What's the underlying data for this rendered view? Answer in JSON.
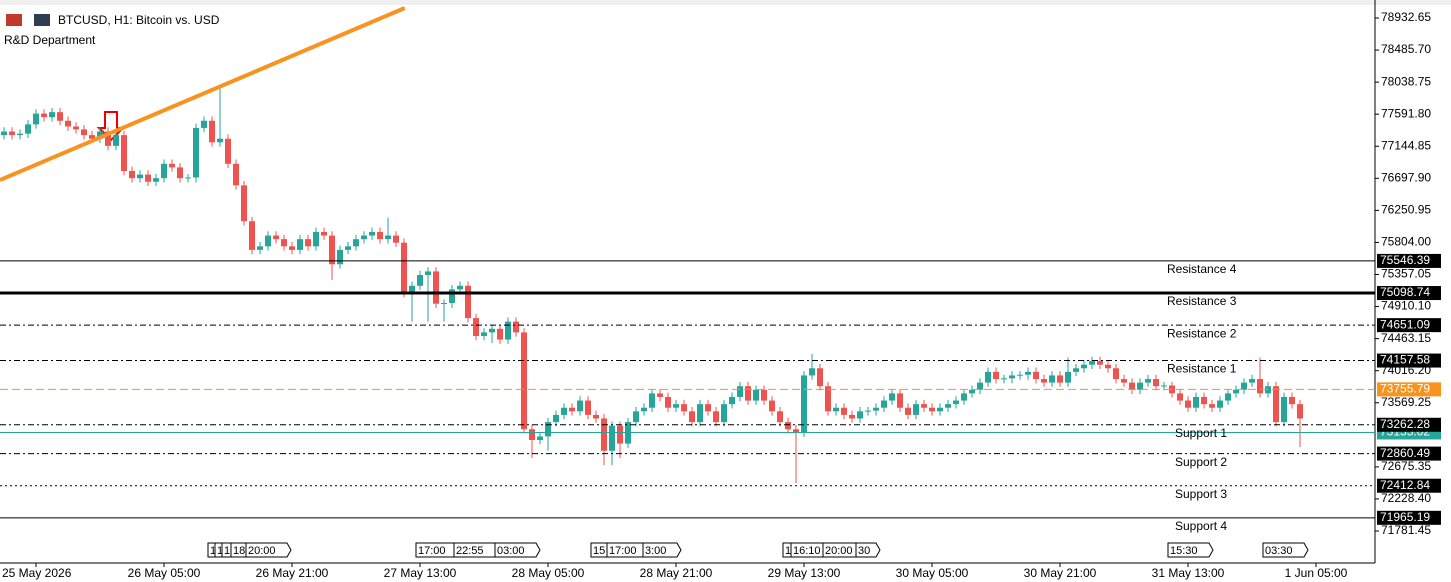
{
  "chart_data": {
    "type": "candlestick",
    "title": "BTCUSD, H1:  Bitcoin vs. USD",
    "subtitle": "R&D Department",
    "up_color": "#26a69a",
    "down_color": "#ef5350",
    "ylim": [
      71684,
      79072
    ],
    "yticks": [
      78932.65,
      {
        "value": 78485.7,
        "label": "78485.70"
      },
      78038.75,
      {
        "value": 77591.8,
        "label": "77591.80"
      },
      77144.85,
      {
        "value": 76697.9,
        "label": "76697.90"
      },
      76250.95,
      {
        "value": 75804,
        "label": "75804.00"
      },
      75357.05,
      {
        "value": 74910.1,
        "label": "74910.10"
      },
      74463.15,
      {
        "value": 74016.2,
        "label": "74016.20"
      },
      73569.25,
      72675.35,
      {
        "value": 72228.4,
        "label": "72228.40"
      },
      71781.45
    ],
    "xticks": [
      {
        "value": 4,
        "label": "25 May 2026"
      },
      {
        "value": 20,
        "label": "26 May 05:00"
      },
      {
        "value": 36,
        "label": "26 May 21:00"
      },
      {
        "value": 52,
        "label": "27 May 13:00"
      },
      {
        "value": 68,
        "label": "28 May 05:00"
      },
      {
        "value": 84,
        "label": "28 May 21:00"
      },
      {
        "value": 100,
        "label": "29 May 13:00"
      },
      {
        "value": 116,
        "label": "30 May 05:00"
      },
      {
        "value": 132,
        "label": "30 May 21:00"
      },
      {
        "value": 148,
        "label": "31 May 13:00"
      },
      {
        "value": 164,
        "label": "1 Jun 05:00"
      }
    ],
    "levels": [
      {
        "name": "Resistance 4",
        "value": 75546.39,
        "style": "solid"
      },
      {
        "name": "Resistance 3",
        "value": 75098.74,
        "style": "thick"
      },
      {
        "name": "Resistance 2",
        "value": 74651.09,
        "style": "dashdot"
      },
      {
        "name": "Resistance 1",
        "value": 74157.58,
        "style": "dashdot"
      },
      {
        "name": "Support 1",
        "value": 73262.28,
        "style": "dashdot"
      },
      {
        "name": "Support 2",
        "value": 72860.49,
        "style": "dashdot"
      },
      {
        "name": "Support 3",
        "value": 72412.84,
        "style": "dotted"
      },
      {
        "name": "Support 4",
        "value": 71965.19,
        "style": "solid"
      }
    ],
    "price_lines": [
      {
        "value": 73755.79,
        "color": "#f7931e"
      },
      {
        "value": 73155.02,
        "color": "#26a69a"
      }
    ],
    "trendline": {
      "color": "#f7931e",
      "x": [
        -0.5,
        50.1
      ],
      "y": [
        76674,
        79072
      ]
    },
    "events": [
      "1",
      "1",
      "1",
      "18",
      "20:00",
      "17:00",
      "22:55",
      "03:00",
      "15",
      "17:00",
      "3:00",
      "1",
      "16:10",
      "20:00",
      "30",
      "15:30",
      "03:30"
    ],
    "candles": [
      [
        77300,
        77410,
        77240,
        77350
      ],
      [
        77350,
        77410,
        77240,
        77300
      ],
      [
        77300,
        77380,
        77240,
        77320
      ],
      [
        77320,
        77510,
        77260,
        77450
      ],
      [
        77450,
        77660,
        77390,
        77600
      ],
      [
        77600,
        77660,
        77490,
        77550
      ],
      [
        77550,
        77680,
        77490,
        77620
      ],
      [
        77620,
        77680,
        77440,
        77500
      ],
      [
        77500,
        77560,
        77360,
        77420
      ],
      [
        77420,
        77480,
        77320,
        77380
      ],
      [
        77380,
        77440,
        77240,
        77300
      ],
      [
        77300,
        77360,
        77190,
        77250
      ],
      [
        77250,
        77410,
        77190,
        77350
      ],
      [
        77350,
        77410,
        77090,
        77150
      ],
      [
        77150,
        77360,
        77090,
        77300
      ],
      [
        77300,
        77360,
        76740,
        76800
      ],
      [
        76800,
        76860,
        76640,
        76700
      ],
      [
        76700,
        76810,
        76640,
        76750
      ],
      [
        76750,
        76810,
        76590,
        76650
      ],
      [
        76650,
        76760,
        76590,
        76700
      ],
      [
        76700,
        76960,
        76640,
        76900
      ],
      [
        76900,
        76960,
        76790,
        76850
      ],
      [
        76850,
        76910,
        76640,
        76700
      ],
      [
        76700,
        76760,
        76640,
        76710
      ],
      [
        76710,
        77460,
        76640,
        77400
      ],
      [
        77400,
        77560,
        77340,
        77500
      ],
      [
        77500,
        77560,
        77140,
        77200
      ],
      [
        77200,
        77950,
        77140,
        77250
      ],
      [
        77250,
        77310,
        76840,
        76900
      ],
      [
        76900,
        76960,
        76540,
        76600
      ],
      [
        76600,
        76660,
        76040,
        76100
      ],
      [
        76100,
        76160,
        75640,
        75700
      ],
      [
        75700,
        75810,
        75640,
        75750
      ],
      [
        75750,
        75960,
        75690,
        75900
      ],
      [
        75900,
        75960,
        75790,
        75850
      ],
      [
        75850,
        75910,
        75690,
        75750
      ],
      [
        75750,
        75810,
        75640,
        75700
      ],
      [
        75700,
        75910,
        75640,
        75850
      ],
      [
        75850,
        75910,
        75690,
        75750
      ],
      [
        75750,
        76010,
        75690,
        75950
      ],
      [
        75950,
        76010,
        75840,
        75900
      ],
      [
        75900,
        75960,
        75280,
        75500
      ],
      [
        75500,
        75760,
        75440,
        75700
      ],
      [
        75700,
        75810,
        75640,
        75750
      ],
      [
        75750,
        75910,
        75690,
        75850
      ],
      [
        75850,
        75960,
        75790,
        75900
      ],
      [
        75900,
        76010,
        75840,
        75950
      ],
      [
        75950,
        76010,
        75790,
        75850
      ],
      [
        75850,
        76150,
        75790,
        75900
      ],
      [
        75900,
        75960,
        75740,
        75800
      ],
      [
        75800,
        75860,
        75040,
        75100
      ],
      [
        75100,
        75260,
        74700,
        75200
      ],
      [
        75200,
        75410,
        75140,
        75350
      ],
      [
        75350,
        75460,
        74700,
        75400
      ],
      [
        75400,
        75460,
        74890,
        74950
      ],
      [
        74950,
        75010,
        74700,
        74960
      ],
      [
        74960,
        75210,
        74890,
        75150
      ],
      [
        75150,
        75260,
        75090,
        75200
      ],
      [
        75200,
        75260,
        74690,
        74750
      ],
      [
        74750,
        74810,
        74440,
        74500
      ],
      [
        74500,
        74610,
        74440,
        74550
      ],
      [
        74550,
        74660,
        74400,
        74600
      ],
      [
        74600,
        74660,
        74390,
        74450
      ],
      [
        74450,
        74760,
        74390,
        74700
      ],
      [
        74700,
        74760,
        74490,
        74550
      ],
      [
        74550,
        74610,
        73140,
        73200
      ],
      [
        73200,
        73260,
        72800,
        73050
      ],
      [
        73050,
        73160,
        72990,
        73100
      ],
      [
        73100,
        73360,
        72900,
        73300
      ],
      [
        73300,
        73460,
        73240,
        73400
      ],
      [
        73400,
        73560,
        73340,
        73500
      ],
      [
        73500,
        73560,
        73390,
        73450
      ],
      [
        73450,
        73660,
        73390,
        73600
      ],
      [
        73600,
        73660,
        73340,
        73400
      ],
      [
        73400,
        73460,
        73290,
        73350
      ],
      [
        73350,
        73410,
        72700,
        72900
      ],
      [
        72900,
        73310,
        72700,
        73250
      ],
      [
        73250,
        73310,
        72800,
        73000
      ],
      [
        73000,
        73360,
        72940,
        73300
      ],
      [
        73300,
        73510,
        73240,
        73450
      ],
      [
        73450,
        73560,
        73390,
        73500
      ],
      [
        73500,
        73760,
        73440,
        73700
      ],
      [
        73700,
        73760,
        73590,
        73650
      ],
      [
        73650,
        73710,
        73440,
        73500
      ],
      [
        73500,
        73610,
        73440,
        73550
      ],
      [
        73550,
        73610,
        73390,
        73450
      ],
      [
        73450,
        73510,
        73240,
        73300
      ],
      [
        73300,
        73610,
        73240,
        73550
      ],
      [
        73550,
        73610,
        73390,
        73450
      ],
      [
        73450,
        73510,
        73240,
        73300
      ],
      [
        73300,
        73610,
        73240,
        73550
      ],
      [
        73550,
        73710,
        73490,
        73650
      ],
      [
        73650,
        73860,
        73590,
        73800
      ],
      [
        73800,
        73860,
        73540,
        73600
      ],
      [
        73600,
        73810,
        73540,
        73750
      ],
      [
        73750,
        73810,
        73540,
        73600
      ],
      [
        73600,
        73660,
        73390,
        73450
      ],
      [
        73450,
        73510,
        73240,
        73300
      ],
      [
        73300,
        73360,
        73140,
        73200
      ],
      [
        73200,
        73260,
        72450,
        73150
      ],
      [
        73150,
        74010,
        73090,
        73950
      ],
      [
        73950,
        74250,
        73890,
        74050
      ],
      [
        74050,
        74110,
        73740,
        73800
      ],
      [
        73800,
        73860,
        73390,
        73450
      ],
      [
        73450,
        73560,
        73390,
        73500
      ],
      [
        73500,
        73560,
        73340,
        73400
      ],
      [
        73400,
        73460,
        73290,
        73350
      ],
      [
        73350,
        73510,
        73290,
        73450
      ],
      [
        73450,
        73510,
        73390,
        73460
      ],
      [
        73460,
        73560,
        73390,
        73500
      ],
      [
        73500,
        73660,
        73440,
        73600
      ],
      [
        73600,
        73760,
        73540,
        73700
      ],
      [
        73700,
        73760,
        73440,
        73500
      ],
      [
        73500,
        73560,
        73340,
        73400
      ],
      [
        73400,
        73610,
        73340,
        73550
      ],
      [
        73550,
        73610,
        73440,
        73500
      ],
      [
        73500,
        73560,
        73390,
        73450
      ],
      [
        73450,
        73560,
        73390,
        73500
      ],
      [
        73500,
        73610,
        73440,
        73550
      ],
      [
        73550,
        73660,
        73490,
        73600
      ],
      [
        73600,
        73760,
        73540,
        73700
      ],
      [
        73700,
        73810,
        73640,
        73750
      ],
      [
        73750,
        73910,
        73690,
        73850
      ],
      [
        73850,
        74060,
        73790,
        74000
      ],
      [
        74000,
        74060,
        73840,
        73900
      ],
      [
        73900,
        73960,
        73840,
        73910
      ],
      [
        73910,
        74010,
        73840,
        73950
      ],
      [
        73950,
        74010,
        73890,
        73960
      ],
      [
        73960,
        74060,
        73890,
        74000
      ],
      [
        74000,
        74060,
        73840,
        73900
      ],
      [
        73900,
        73960,
        73790,
        73850
      ],
      [
        73850,
        74010,
        73790,
        73950
      ],
      [
        73950,
        74010,
        73790,
        73850
      ],
      [
        73850,
        74200,
        73790,
        74000
      ],
      [
        74000,
        74110,
        73940,
        74050
      ],
      [
        74050,
        74160,
        73990,
        74100
      ],
      [
        74100,
        74210,
        74040,
        74150
      ],
      [
        74150,
        74210,
        74040,
        74100
      ],
      [
        74100,
        74160,
        73990,
        74050
      ],
      [
        74050,
        74110,
        73840,
        73900
      ],
      [
        73900,
        73960,
        73790,
        73850
      ],
      [
        73850,
        73910,
        73690,
        73750
      ],
      [
        73750,
        73910,
        73690,
        73850
      ],
      [
        73850,
        73960,
        73790,
        73900
      ],
      [
        73900,
        73960,
        73740,
        73800
      ],
      [
        73800,
        73860,
        73740,
        73810
      ],
      [
        73810,
        73860,
        73640,
        73700
      ],
      [
        73700,
        73760,
        73540,
        73600
      ],
      [
        73600,
        73660,
        73440,
        73500
      ],
      [
        73500,
        73710,
        73440,
        73650
      ],
      [
        73650,
        73710,
        73490,
        73550
      ],
      [
        73550,
        73610,
        73440,
        73500
      ],
      [
        73500,
        73660,
        73440,
        73600
      ],
      [
        73600,
        73760,
        73540,
        73700
      ],
      [
        73700,
        73810,
        73640,
        73750
      ],
      [
        73750,
        73910,
        73690,
        73850
      ],
      [
        73850,
        73960,
        73790,
        73900
      ],
      [
        73900,
        74200,
        73640,
        73700
      ],
      [
        73700,
        73860,
        73640,
        73800
      ],
      [
        73800,
        73860,
        73240,
        73300
      ],
      [
        73300,
        73710,
        73240,
        73650
      ],
      [
        73650,
        73710,
        73490,
        73550
      ],
      [
        73550,
        73610,
        72950,
        73350
      ]
    ]
  }
}
